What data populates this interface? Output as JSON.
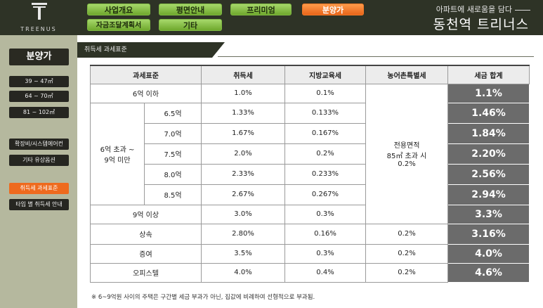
{
  "brand": {
    "logo_text": "TREENUS",
    "tagline": "아파트에 새로움을 담다",
    "name": "동천역 트리너스"
  },
  "nav": {
    "row1": [
      "사업개요",
      "평면안내",
      "프리미엄",
      "분양가"
    ],
    "row2": [
      "자금조달계획서",
      "기타"
    ],
    "active": "분양가"
  },
  "sidebar": {
    "title": "분양가",
    "group1": [
      "39 ~ 47㎡",
      "64 ~ 70㎡",
      "81 ~ 102㎡"
    ],
    "group2": [
      "확장비/시스템에어컨",
      "기타 유상옵션"
    ],
    "group3": [
      "취득세 과세표준",
      "타입 별 취득세 안내"
    ],
    "active": "취득세 과세표준"
  },
  "page": {
    "title": "취득세 과세표준"
  },
  "table": {
    "headers": [
      "과세표준",
      "취득세",
      "지방교육세",
      "농어촌특별세",
      "세금 합계"
    ],
    "rows": [
      {
        "label": "6억 이하",
        "acq": "1.0%",
        "edu": "0.1%",
        "total": "1.1%"
      },
      {
        "sub": "6.5억",
        "acq": "1.33%",
        "edu": "0.133%",
        "total": "1.46%"
      },
      {
        "sub": "7.0억",
        "acq": "1.67%",
        "edu": "0.167%",
        "total": "1.84%"
      },
      {
        "sub": "7.5억",
        "acq": "2.0%",
        "edu": "0.2%",
        "total": "2.20%"
      },
      {
        "sub": "8.0억",
        "acq": "2.33%",
        "edu": "0.233%",
        "total": "2.56%"
      },
      {
        "sub": "8.5억",
        "acq": "2.67%",
        "edu": "0.267%",
        "total": "2.94%"
      },
      {
        "label": "9억 이상",
        "acq": "3.0%",
        "edu": "0.3%",
        "total": "3.3%"
      },
      {
        "label": "상속",
        "acq": "2.80%",
        "edu": "0.16%",
        "rural": "0.2%",
        "total": "3.16%"
      },
      {
        "label": "증여",
        "acq": "3.5%",
        "edu": "0.3%",
        "rural": "0.2%",
        "total": "4.0%"
      },
      {
        "label": "오피스텔",
        "acq": "4.0%",
        "edu": "0.4%",
        "rural": "0.2%",
        "total": "4.6%"
      }
    ],
    "group_label_line1": "6억 초과 ~",
    "group_label_line2": "9억 미만",
    "rural_merged_line1": "전용면적",
    "rural_merged_line2": "85㎡ 초과 시",
    "rural_merged_line3": "0.2%"
  },
  "note": "※ 6~9억원 사이의 주택은 구간별 세금 부과가 아닌, 집값에 비례하여 선형적으로 부과됨."
}
